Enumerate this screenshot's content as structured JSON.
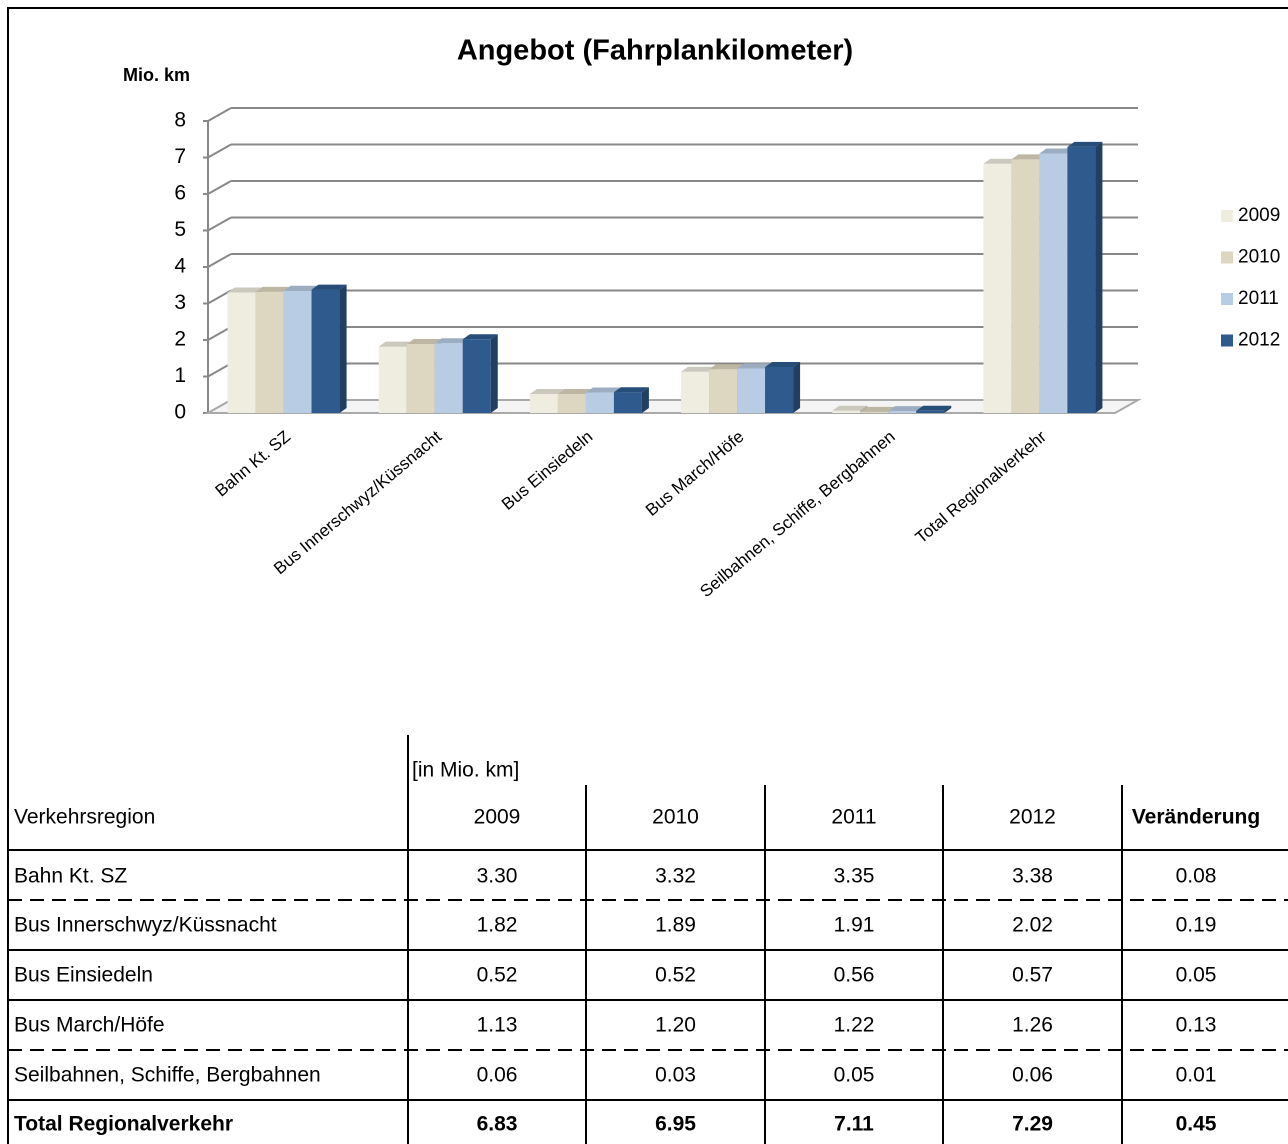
{
  "chart_data": {
    "type": "bar",
    "title": "Angebot (Fahrplankilometer)",
    "y_label": "Mio. km",
    "categories": [
      "Bahn Kt. SZ",
      "Bus Innerschwyz/Küssnacht",
      "Bus Einsiedeln",
      "Bus March/Höfe",
      "Seilbahnen, Schiffe, Bergbahnen",
      "Total Regionalverkehr"
    ],
    "series": [
      {
        "name": "2009",
        "color": "#efece0",
        "values": [
          3.3,
          1.82,
          0.52,
          1.13,
          0.06,
          6.83
        ]
      },
      {
        "name": "2010",
        "color": "#ddd6c0",
        "values": [
          3.32,
          1.89,
          0.52,
          1.2,
          0.03,
          6.95
        ]
      },
      {
        "name": "2011",
        "color": "#b8cce4",
        "values": [
          3.35,
          1.91,
          0.56,
          1.22,
          0.05,
          7.11
        ]
      },
      {
        "name": "2012",
        "color": "#2e5a8e",
        "values": [
          3.38,
          2.02,
          0.57,
          1.26,
          0.06,
          7.29
        ]
      }
    ],
    "ylim": [
      0,
      8
    ],
    "yticks": [
      0,
      1,
      2,
      3,
      4,
      5,
      6,
      7,
      8
    ],
    "grid": true,
    "legend": "right"
  },
  "table": {
    "unit_label": "[in Mio. km]",
    "header": [
      "Verkehrsregion",
      "2009",
      "2010",
      "2011",
      "2012",
      "Veränderung"
    ],
    "rows": [
      [
        "Bahn Kt. SZ",
        "3.30",
        "3.32",
        "3.35",
        "3.38",
        "0.08"
      ],
      [
        "Bus Innerschwyz/Küssnacht",
        "1.82",
        "1.89",
        "1.91",
        "2.02",
        "0.19"
      ],
      [
        "Bus Einsiedeln",
        "0.52",
        "0.52",
        "0.56",
        "0.57",
        "0.05"
      ],
      [
        "Bus March/Höfe",
        "1.13",
        "1.20",
        "1.22",
        "1.26",
        "0.13"
      ],
      [
        "Seilbahnen, Schiffe, Bergbahnen",
        "0.06",
        "0.03",
        "0.05",
        "0.06",
        "0.01"
      ],
      [
        "Total Regionalverkehr",
        "6.83",
        "6.95",
        "7.11",
        "7.29",
        "0.45"
      ]
    ]
  }
}
